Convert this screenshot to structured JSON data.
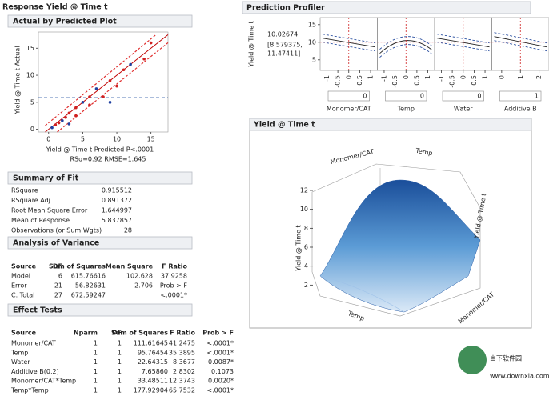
{
  "header": {
    "title": "Response Yield @ Time t"
  },
  "fit_plot": {
    "title": "Actual by Predicted Plot",
    "y_label": "Yield @ Time t Actual",
    "x_label": "Yield @ Time t Predicted P<.0001",
    "stats": "RSq=0.92 RMSE=1.645",
    "xlim": [
      -1.5,
      17.5
    ],
    "ylim": [
      -0.5,
      18
    ],
    "xticks": [
      0,
      5,
      10,
      15
    ],
    "yticks": [
      0,
      5,
      10,
      15
    ],
    "points": {
      "x": [
        0.5,
        1,
        1.5,
        2,
        2.5,
        3,
        3,
        4,
        4,
        5,
        6,
        6,
        7,
        8,
        9,
        9,
        10,
        11,
        12,
        14,
        15
      ],
      "y": [
        0.3,
        0.8,
        1.2,
        1.6,
        2.2,
        3,
        1,
        4,
        2.5,
        5,
        6,
        4.5,
        7.5,
        6,
        9,
        5,
        8,
        11,
        12,
        13,
        16
      ]
    }
  },
  "summary_of_fit": {
    "title": "Summary of Fit",
    "rows": [
      [
        "RSquare",
        "0.915512"
      ],
      [
        "RSquare Adj",
        "0.891372"
      ],
      [
        "Root Mean Square Error",
        "1.644997"
      ],
      [
        "Mean of Response",
        "5.837857"
      ],
      [
        "Observations (or Sum Wgts)",
        "28"
      ]
    ]
  },
  "anova": {
    "title": "Analysis of Variance",
    "columns": [
      "Source",
      "DF",
      "Sum of Squares",
      "Mean Square",
      "F Ratio"
    ],
    "rows": [
      [
        "Model",
        "6",
        "615.76616",
        "102.628",
        "37.9258"
      ],
      [
        "Error",
        "21",
        "56.82631",
        "2.706",
        "Prob > F"
      ],
      [
        "C. Total",
        "27",
        "672.59247",
        null,
        "<.0001*"
      ]
    ]
  },
  "effect_tests": {
    "title": "Effect Tests",
    "columns": [
      "Source",
      "Nparm",
      "DF",
      "Sum of Squares",
      "F Ratio",
      "Prob > F"
    ],
    "rows": [
      [
        "Monomer/CAT",
        "1",
        "1",
        "111.61645",
        "41.2475",
        "<.0001*"
      ],
      [
        "Temp",
        "1",
        "1",
        "95.76454",
        "35.3895",
        "<.0001*"
      ],
      [
        "Water",
        "1",
        "1",
        "22.64315",
        "8.3677",
        "0.0087*"
      ],
      [
        "Additive B(0,2)",
        "1",
        "1",
        "7.65860",
        "2.8302",
        "0.1073"
      ],
      [
        "Monomer/CAT*Temp",
        "1",
        "1",
        "33.48511",
        "12.3743",
        "0.0020*"
      ],
      [
        "Temp*Temp",
        "1",
        "1",
        "177.92904",
        "65.7532",
        "<.0001*"
      ]
    ]
  },
  "profiler": {
    "title": "Prediction Profiler",
    "y_label": "Yield @ Time t",
    "prediction": "10.02674",
    "interval": [
      "[8.579375,",
      "11.47411]"
    ],
    "ylim": [
      2,
      17
    ],
    "yticks": [
      15,
      10,
      5
    ],
    "factors": [
      {
        "name": "Monomer/CAT",
        "setting": "0",
        "xlim": [
          -1.2,
          1.2
        ],
        "xticks": [
          -1,
          -0.5,
          0,
          0.5,
          1
        ]
      },
      {
        "name": "Temp",
        "setting": "0",
        "xlim": [
          -1.2,
          1.2
        ],
        "xticks": [
          -1,
          -0.5,
          0,
          0.5,
          1
        ]
      },
      {
        "name": "Water",
        "setting": "0",
        "xlim": [
          -1.2,
          1.2
        ],
        "xticks": [
          -1,
          -0.5,
          0,
          0.5,
          1
        ]
      },
      {
        "name": "Additive B",
        "setting": "1",
        "xlim": [
          -0.4,
          2.4
        ],
        "xticks": [
          0,
          1,
          2
        ]
      }
    ]
  },
  "surface": {
    "title": "Yield @ Time t",
    "x_label": "Monomer/CAT",
    "y_label": "Temp",
    "z_label": "Yield @ Time t",
    "zlim": [
      0,
      12
    ],
    "zticks": [
      2,
      4,
      6,
      8,
      10,
      12
    ]
  },
  "watermark": {
    "name": "当下软件园",
    "url": "www.downxia.com"
  }
}
